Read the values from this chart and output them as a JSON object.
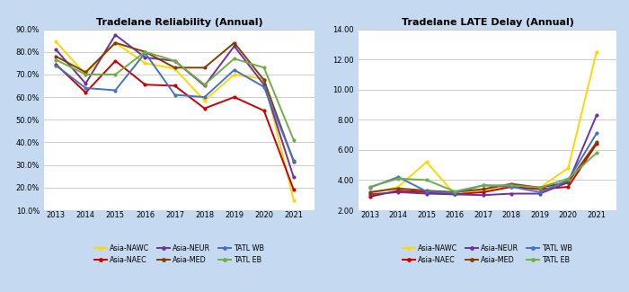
{
  "years": [
    2013,
    2014,
    2015,
    2016,
    2017,
    2018,
    2019,
    2020,
    2021
  ],
  "reliability": {
    "Asia-NAWC": [
      0.845,
      0.7,
      0.84,
      0.75,
      0.725,
      0.585,
      0.7,
      0.68,
      0.145
    ],
    "Asia-NAEC": [
      0.745,
      0.62,
      0.76,
      0.655,
      0.65,
      0.55,
      0.6,
      0.54,
      0.19
    ],
    "Asia-NEUR": [
      0.81,
      0.66,
      0.875,
      0.775,
      0.76,
      0.65,
      0.825,
      0.655,
      0.245
    ],
    "Asia-MED": [
      0.78,
      0.71,
      0.84,
      0.8,
      0.73,
      0.73,
      0.84,
      0.675,
      0.315
    ],
    "TATL WB": [
      0.74,
      0.64,
      0.63,
      0.795,
      0.61,
      0.6,
      0.72,
      0.645,
      0.32
    ],
    "TATL EB": [
      0.765,
      0.7,
      0.7,
      0.8,
      0.76,
      0.655,
      0.77,
      0.73,
      0.41
    ]
  },
  "delay": {
    "Asia-NAWC": [
      3.1,
      3.55,
      5.2,
      3.05,
      3.35,
      3.65,
      3.5,
      4.8,
      12.5
    ],
    "Asia-NAEC": [
      2.9,
      3.3,
      3.2,
      3.05,
      3.2,
      3.55,
      3.4,
      3.55,
      6.4
    ],
    "Asia-NEUR": [
      3.05,
      3.2,
      3.1,
      3.05,
      3.0,
      3.1,
      3.1,
      3.85,
      8.3
    ],
    "Asia-MED": [
      3.2,
      3.45,
      3.3,
      3.2,
      3.4,
      3.75,
      3.5,
      3.85,
      6.5
    ],
    "TATL WB": [
      3.5,
      4.2,
      3.25,
      3.15,
      3.65,
      3.55,
      3.2,
      4.0,
      7.1
    ],
    "TATL EB": [
      3.55,
      4.1,
      4.0,
      3.25,
      3.65,
      3.65,
      3.5,
      4.1,
      5.8
    ]
  },
  "series_colors": {
    "Asia-NAWC": "#FFD700",
    "Asia-NAEC": "#CC0000",
    "Asia-NEUR": "#7030A0",
    "Asia-MED": "#7F3F00",
    "TATL WB": "#4472C4",
    "TATL EB": "#70AD47"
  },
  "title_reliability": "Tradelane Reliability (Annual)",
  "title_delay": "Tradelane LATE Delay (Annual)",
  "reliability_ylim": [
    0.1,
    0.9
  ],
  "reliability_yticks": [
    0.1,
    0.2,
    0.3,
    0.4,
    0.5,
    0.6,
    0.7,
    0.8,
    0.9
  ],
  "delay_ylim": [
    2.0,
    14.0
  ],
  "delay_yticks": [
    2.0,
    4.0,
    6.0,
    8.0,
    10.0,
    12.0,
    14.0
  ],
  "outer_bg_color": "#c5d9f1",
  "plot_bg_color": "#ffffff"
}
